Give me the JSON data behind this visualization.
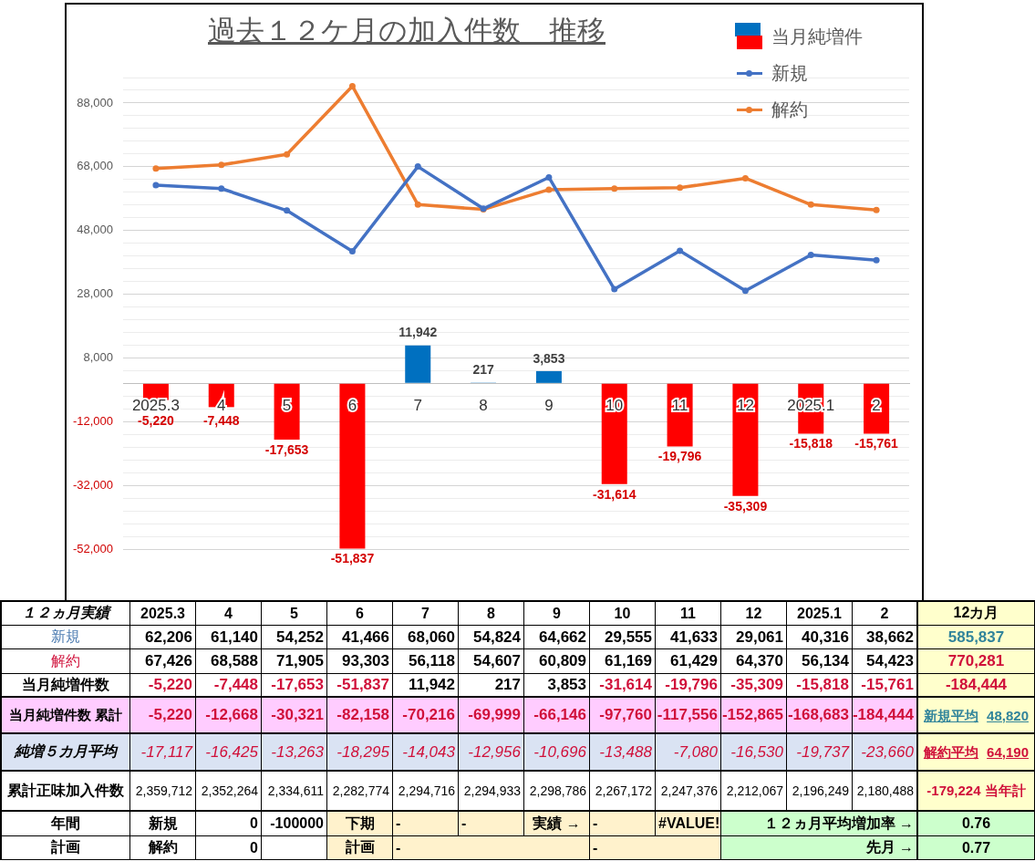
{
  "chart_data": [
    {
      "type": "bar",
      "title": "過去１２ケ月の加入件数　推移",
      "categories": [
        "2025.3",
        "4",
        "5",
        "6",
        "7",
        "8",
        "9",
        "10",
        "11",
        "12",
        "2025.1",
        "2"
      ],
      "series": [
        {
          "name": "当月純増件",
          "type": "bar",
          "colors": [
            "#ff0000",
            "#ff0000",
            "#ff0000",
            "#ff0000",
            "#0070c0",
            "#0070c0",
            "#0070c0",
            "#ff0000",
            "#ff0000",
            "#ff0000",
            "#ff0000",
            "#ff0000"
          ],
          "values": [
            -5220,
            -7448,
            -17653,
            -51837,
            11942,
            217,
            3853,
            -31614,
            -19796,
            -35309,
            -15818,
            -15761
          ],
          "value_labels": [
            "-5,220",
            "-7,448",
            "-17,653",
            "-51,837",
            "11,942",
            "217",
            "3,853",
            "-31,614",
            "-19,796",
            "-35,309",
            "-15,818",
            "-15,761"
          ]
        },
        {
          "name": "新規",
          "type": "line",
          "color": "#4472c4",
          "values": [
            62206,
            61140,
            54252,
            41466,
            68060,
            54824,
            64662,
            29555,
            41633,
            29061,
            40316,
            38662
          ]
        },
        {
          "name": "解約",
          "type": "line",
          "color": "#ed7d31",
          "values": [
            67426,
            68588,
            71905,
            93303,
            56118,
            54607,
            60809,
            61169,
            61429,
            64370,
            56134,
            54423
          ]
        }
      ],
      "ylim": [
        -52000,
        96000
      ],
      "yticks": [
        {
          "value": -52000,
          "label": "-52,000"
        },
        {
          "value": -48000,
          "label": null
        },
        {
          "value": -44000,
          "label": null
        },
        {
          "value": -40000,
          "label": null
        },
        {
          "value": -36000,
          "label": null
        },
        {
          "value": -32000,
          "label": "-32,000"
        },
        {
          "value": -28000,
          "label": null
        },
        {
          "value": -24000,
          "label": null
        },
        {
          "value": -20000,
          "label": null
        },
        {
          "value": -16000,
          "label": null
        },
        {
          "value": -12000,
          "label": "-12,000"
        },
        {
          "value": -8000,
          "label": null
        },
        {
          "value": -4000,
          "label": null
        },
        {
          "value": 0,
          "label": null
        },
        {
          "value": 4000,
          "label": null
        },
        {
          "value": 8000,
          "label": "8,000"
        },
        {
          "value": 12000,
          "label": null
        },
        {
          "value": 16000,
          "label": null
        },
        {
          "value": 20000,
          "label": null
        },
        {
          "value": 24000,
          "label": null
        },
        {
          "value": 28000,
          "label": "28,000"
        },
        {
          "value": 32000,
          "label": null
        },
        {
          "value": 36000,
          "label": null
        },
        {
          "value": 40000,
          "label": null
        },
        {
          "value": 44000,
          "label": null
        },
        {
          "value": 48000,
          "label": "48,000"
        },
        {
          "value": 52000,
          "label": null
        },
        {
          "value": 56000,
          "label": null
        },
        {
          "value": 60000,
          "label": null
        },
        {
          "value": 64000,
          "label": null
        },
        {
          "value": 68000,
          "label": "68,000"
        },
        {
          "value": 72000,
          "label": null
        },
        {
          "value": 76000,
          "label": null
        },
        {
          "value": 80000,
          "label": null
        },
        {
          "value": 84000,
          "label": null
        },
        {
          "value": 88000,
          "label": "88,000"
        },
        {
          "value": 92000,
          "label": null
        },
        {
          "value": 96000,
          "label": null
        }
      ],
      "grid": "y",
      "legend": "top right",
      "marker": "circle",
      "line_style": "solid"
    },
    {
      "type": "heatmap",
      "title": "１２ヵ月実績",
      "categories": [
        "2025.3",
        "4",
        "5",
        "6",
        "7",
        "8",
        "9",
        "10",
        "11",
        "12",
        "2025.1",
        "2",
        "12カ月"
      ],
      "y_categories": [
        "新規",
        "解約",
        "当月純増件数",
        "当月純増件数 累計",
        "純増５カ月平均",
        "累計正味加入件数",
        "年間",
        "計画"
      ],
      "cells": [
        [
          62206,
          61140,
          54252,
          41466,
          68060,
          54824,
          64662,
          29555,
          41633,
          29061,
          40316,
          38662,
          585837
        ],
        [
          67426,
          68588,
          71905,
          93303,
          56118,
          54607,
          60809,
          61169,
          61429,
          64370,
          56134,
          54423,
          770281
        ],
        [
          -5220,
          -7448,
          -17653,
          -51837,
          11942,
          217,
          3853,
          -31614,
          -19796,
          -35309,
          -15818,
          -15761,
          -184444
        ],
        [
          -5220,
          -12668,
          -30321,
          -82158,
          -70216,
          -69999,
          -66146,
          -97760,
          -117556,
          -152865,
          -168683,
          -184444,
          48820
        ],
        [
          -17117,
          -16425,
          -13263,
          -18295,
          -14043,
          -12956,
          -10696,
          -13488,
          -7080,
          -16530,
          -19737,
          -23660,
          64190
        ],
        [
          2359712,
          2352264,
          2334611,
          2282774,
          2294716,
          2294933,
          2298786,
          2267172,
          2247376,
          2212067,
          2196249,
          2180488,
          -179224
        ],
        [
          null,
          0,
          -100000,
          null,
          null,
          null,
          null,
          null,
          null,
          null,
          null,
          null,
          0.76
        ],
        [
          null,
          0,
          null,
          null,
          null,
          null,
          null,
          null,
          null,
          null,
          null,
          null,
          0.77
        ]
      ],
      "cell_labels": [
        [
          "62,206",
          "61,140",
          "54,252",
          "41,466",
          "68,060",
          "54,824",
          "64,662",
          "29,555",
          "41,633",
          "29,061",
          "40,316",
          "38,662",
          "585,837"
        ],
        [
          "67,426",
          "68,588",
          "71,905",
          "93,303",
          "56,118",
          "54,607",
          "60,809",
          "61,169",
          "61,429",
          "64,370",
          "56,134",
          "54,423",
          "770,281"
        ],
        [
          "-5,220",
          "-7,448",
          "-17,653",
          "-51,837",
          "11,942",
          "217",
          "3,853",
          "-31,614",
          "-19,796",
          "-35,309",
          "-15,818",
          "-15,761",
          "-184,444"
        ],
        [
          "-5,220",
          "-12,668",
          "-30,321",
          "-82,158",
          "-70,216",
          "-69,999",
          "-66,146",
          "-97,760",
          "-117,556",
          "-152,865",
          "-168,683",
          "-184,444",
          "48,820"
        ],
        [
          "-17,117",
          "-16,425",
          "-13,263",
          "-18,295",
          "-14,043",
          "-12,956",
          "-10,696",
          "-13,488",
          "-7,080",
          "-16,530",
          "-19,737",
          "-23,660",
          "64,190"
        ],
        [
          "2,359,712",
          "2,352,264",
          "2,334,611",
          "2,282,774",
          "2,294,716",
          "2,294,933",
          "2,298,786",
          "2,267,172",
          "2,247,376",
          "2,212,067",
          "2,196,249",
          "2,180,488",
          "-179,224 当年計"
        ],
        [
          "新規",
          "0",
          "-100000",
          "下期",
          "-",
          "-",
          "実績 →",
          "-",
          "#VALUE!",
          "１２ヵ月平均増加率 →",
          null,
          null,
          "0.76"
        ],
        [
          "解約",
          "0",
          null,
          "計画",
          "-",
          null,
          null,
          "-",
          null,
          "先月 →",
          null,
          null,
          "0.77"
        ]
      ],
      "annotations": [
        "新規平均",
        "解約平均"
      ]
    }
  ]
}
